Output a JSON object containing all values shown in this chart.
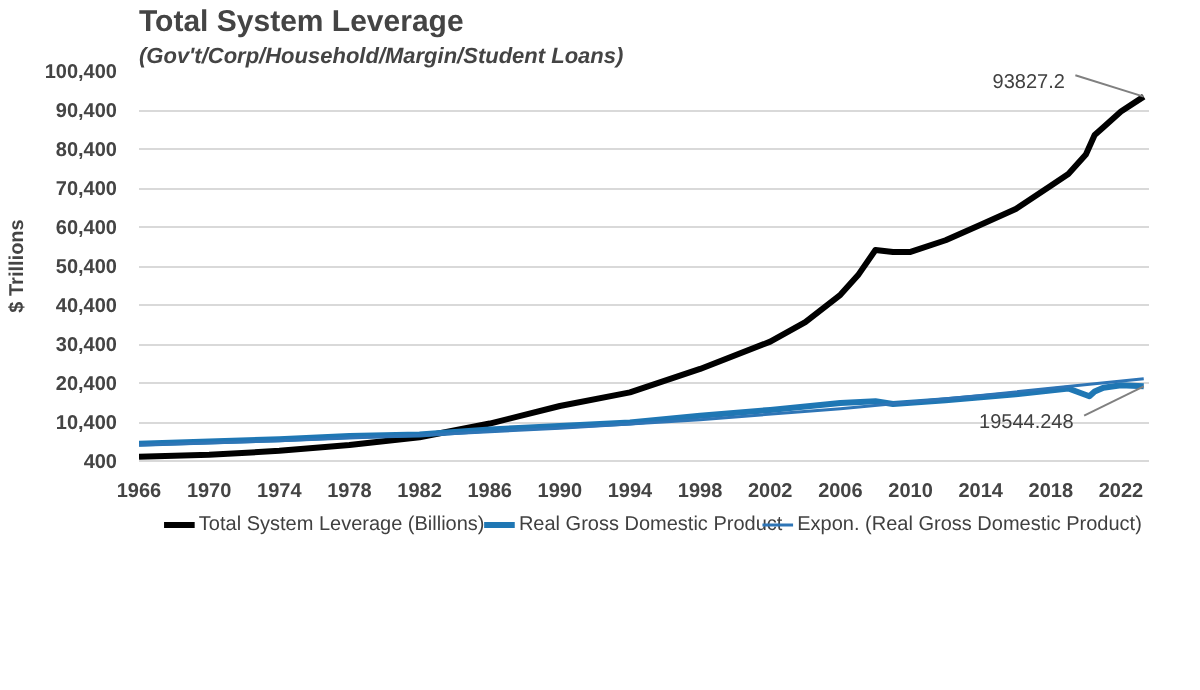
{
  "chart_data": {
    "type": "line",
    "title": "Total System Leverage",
    "subtitle": "(Gov't/Corp/Household/Margin/Student Loans)",
    "ylabel": "$ Trillions",
    "xlim": [
      1966,
      2023.6
    ],
    "xticks": [
      1966,
      1970,
      1974,
      1978,
      1982,
      1986,
      1990,
      1994,
      1998,
      2002,
      2006,
      2010,
      2014,
      2018,
      2022
    ],
    "ylim": [
      400,
      100400
    ],
    "yticks": [
      {
        "value": 400,
        "label": "400"
      },
      {
        "value": 10400,
        "label": "10,400"
      },
      {
        "value": 20400,
        "label": "20,400"
      },
      {
        "value": 30400,
        "label": "30,400"
      },
      {
        "value": 40400,
        "label": "40,400"
      },
      {
        "value": 50400,
        "label": "50,400"
      },
      {
        "value": 60400,
        "label": "60,400"
      },
      {
        "value": 70400,
        "label": "70,400"
      },
      {
        "value": 80400,
        "label": "80,400"
      },
      {
        "value": 90400,
        "label": "90,400"
      },
      {
        "value": 100400,
        "label": "100,400"
      }
    ],
    "grid": "y",
    "legend": "bottom",
    "marker": "none",
    "series": [
      {
        "name": "Total System Leverage (Billions)",
        "color": "#000000",
        "x": [
          1966,
          1970,
          1974,
          1978,
          1982,
          1986,
          1990,
          1994,
          1998,
          2002,
          2004,
          2006,
          2007,
          2008,
          2009,
          2010,
          2012,
          2014,
          2016,
          2018,
          2019,
          2020,
          2020.5,
          2021,
          2022,
          2023.3
        ],
        "values": [
          1500,
          2000,
          3000,
          4500,
          6500,
          10000,
          14500,
          18000,
          24000,
          31000,
          36000,
          43000,
          48000,
          54500,
          54000,
          54000,
          57000,
          61000,
          65000,
          71000,
          74000,
          79000,
          84000,
          86000,
          90000,
          93827.2
        ]
      },
      {
        "name": "Real Gross Domestic Product",
        "color": "#1f77b4",
        "x": [
          1966,
          1970,
          1974,
          1978,
          1982,
          1986,
          1990,
          1994,
          1998,
          2002,
          2006,
          2008,
          2009,
          2012,
          2016,
          2019,
          2020.2,
          2020.5,
          2021,
          2022,
          2023.3
        ],
        "values": [
          4800,
          5400,
          6000,
          6800,
          7200,
          8500,
          9400,
          10300,
          12000,
          13500,
          15300,
          15700,
          15000,
          16000,
          17500,
          19000,
          17000,
          18200,
          19200,
          19800,
          19544.248
        ]
      },
      {
        "name": "Expon. (Real Gross Domestic Product)",
        "color": "#2e75b6",
        "x": [
          1966,
          1974,
          1982,
          1990,
          1998,
          2006,
          2014,
          2023.3
        ],
        "values": [
          4500,
          5600,
          7000,
          8800,
          11000,
          13800,
          17200,
          21500
        ],
        "line_style": "solid"
      }
    ],
    "annotations": [
      {
        "text": "93827.2",
        "x": 2023.3,
        "y": 93827.2
      },
      {
        "text": "19544.248",
        "x": 2023.3,
        "y": 19544.248
      }
    ]
  }
}
